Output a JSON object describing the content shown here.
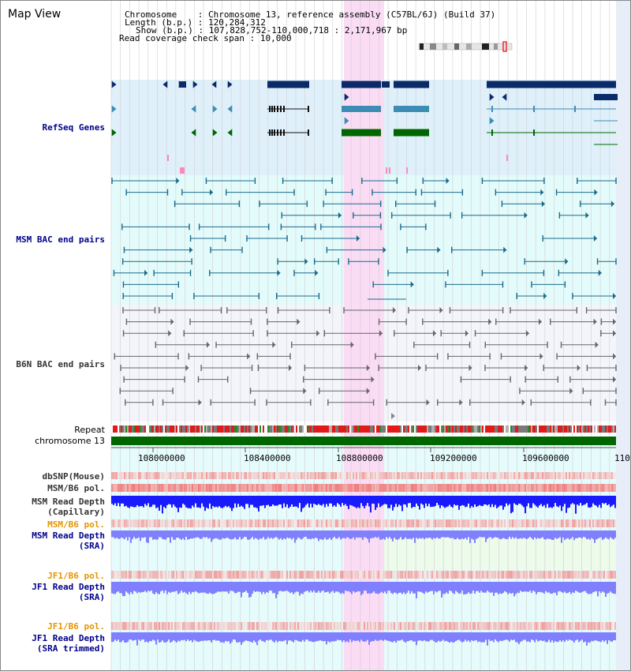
{
  "title": "Map View",
  "info": {
    "chromosome_key": "Chromosome    ",
    "chromosome_val": "Chromosome 13, reference assembly (C57BL/6J) (Build 37)",
    "length_key": "Length (b.p.)",
    "length_val": "120,284,312",
    "show_key": "Show (b.p.)",
    "show_val": "107,828,752-110,000,718 : 2,171,967 bp",
    "coverage_key": "Read coverage check span",
    "coverage_val": "10,000"
  },
  "tracks": {
    "refseq": "RefSeq Genes",
    "msm_bac": "MSM BAC end pairs",
    "b6n_bac": "B6N BAC end pairs",
    "repeat": "Repeat",
    "chromosome": "chromosome 13",
    "dbsnp": "dbSNP(Mouse)",
    "msm_b6_pol_1": "MSM/B6 pol.",
    "msm_read_depth_cap_1": "MSM Read Depth",
    "msm_read_depth_cap_2": "(Capillary)",
    "msm_b6_pol_2": "MSM/B6 pol.",
    "msm_read_depth_sra_1": "MSM Read Depth",
    "msm_read_depth_sra_2": "(SRA)",
    "jf1_b6_pol_1": "JF1/B6 pol.",
    "jf1_read_depth_sra_1": "JF1 Read Depth",
    "jf1_read_depth_sra_2": "(SRA)",
    "jf1_b6_pol_2": "JF1/B6 pol.",
    "jf1_read_depth_trim_1": "JF1 Read Depth",
    "jf1_read_depth_trim_2": "(SRA trimmed)"
  },
  "axis": {
    "ticks": [
      "108000000",
      "108400000",
      "108800000",
      "109200000",
      "109600000",
      "110"
    ]
  },
  "colors": {
    "refseq_bg": "#dff0fa",
    "msm_bg": "#e4fbfb",
    "b6n_bg": "#f3f5fb",
    "highlight": "#fadcf5",
    "gene_navy": "#0a2a6a",
    "gene_teal": "#3c8cb4",
    "gene_green": "#006600",
    "msm_line": "#1a6a8a",
    "b6n_line": "#666666",
    "chrom_green": "#006600",
    "depth_blue": "#1a1aff",
    "depth_light": "#8080ff",
    "pol_red": "#ee5555"
  }
}
